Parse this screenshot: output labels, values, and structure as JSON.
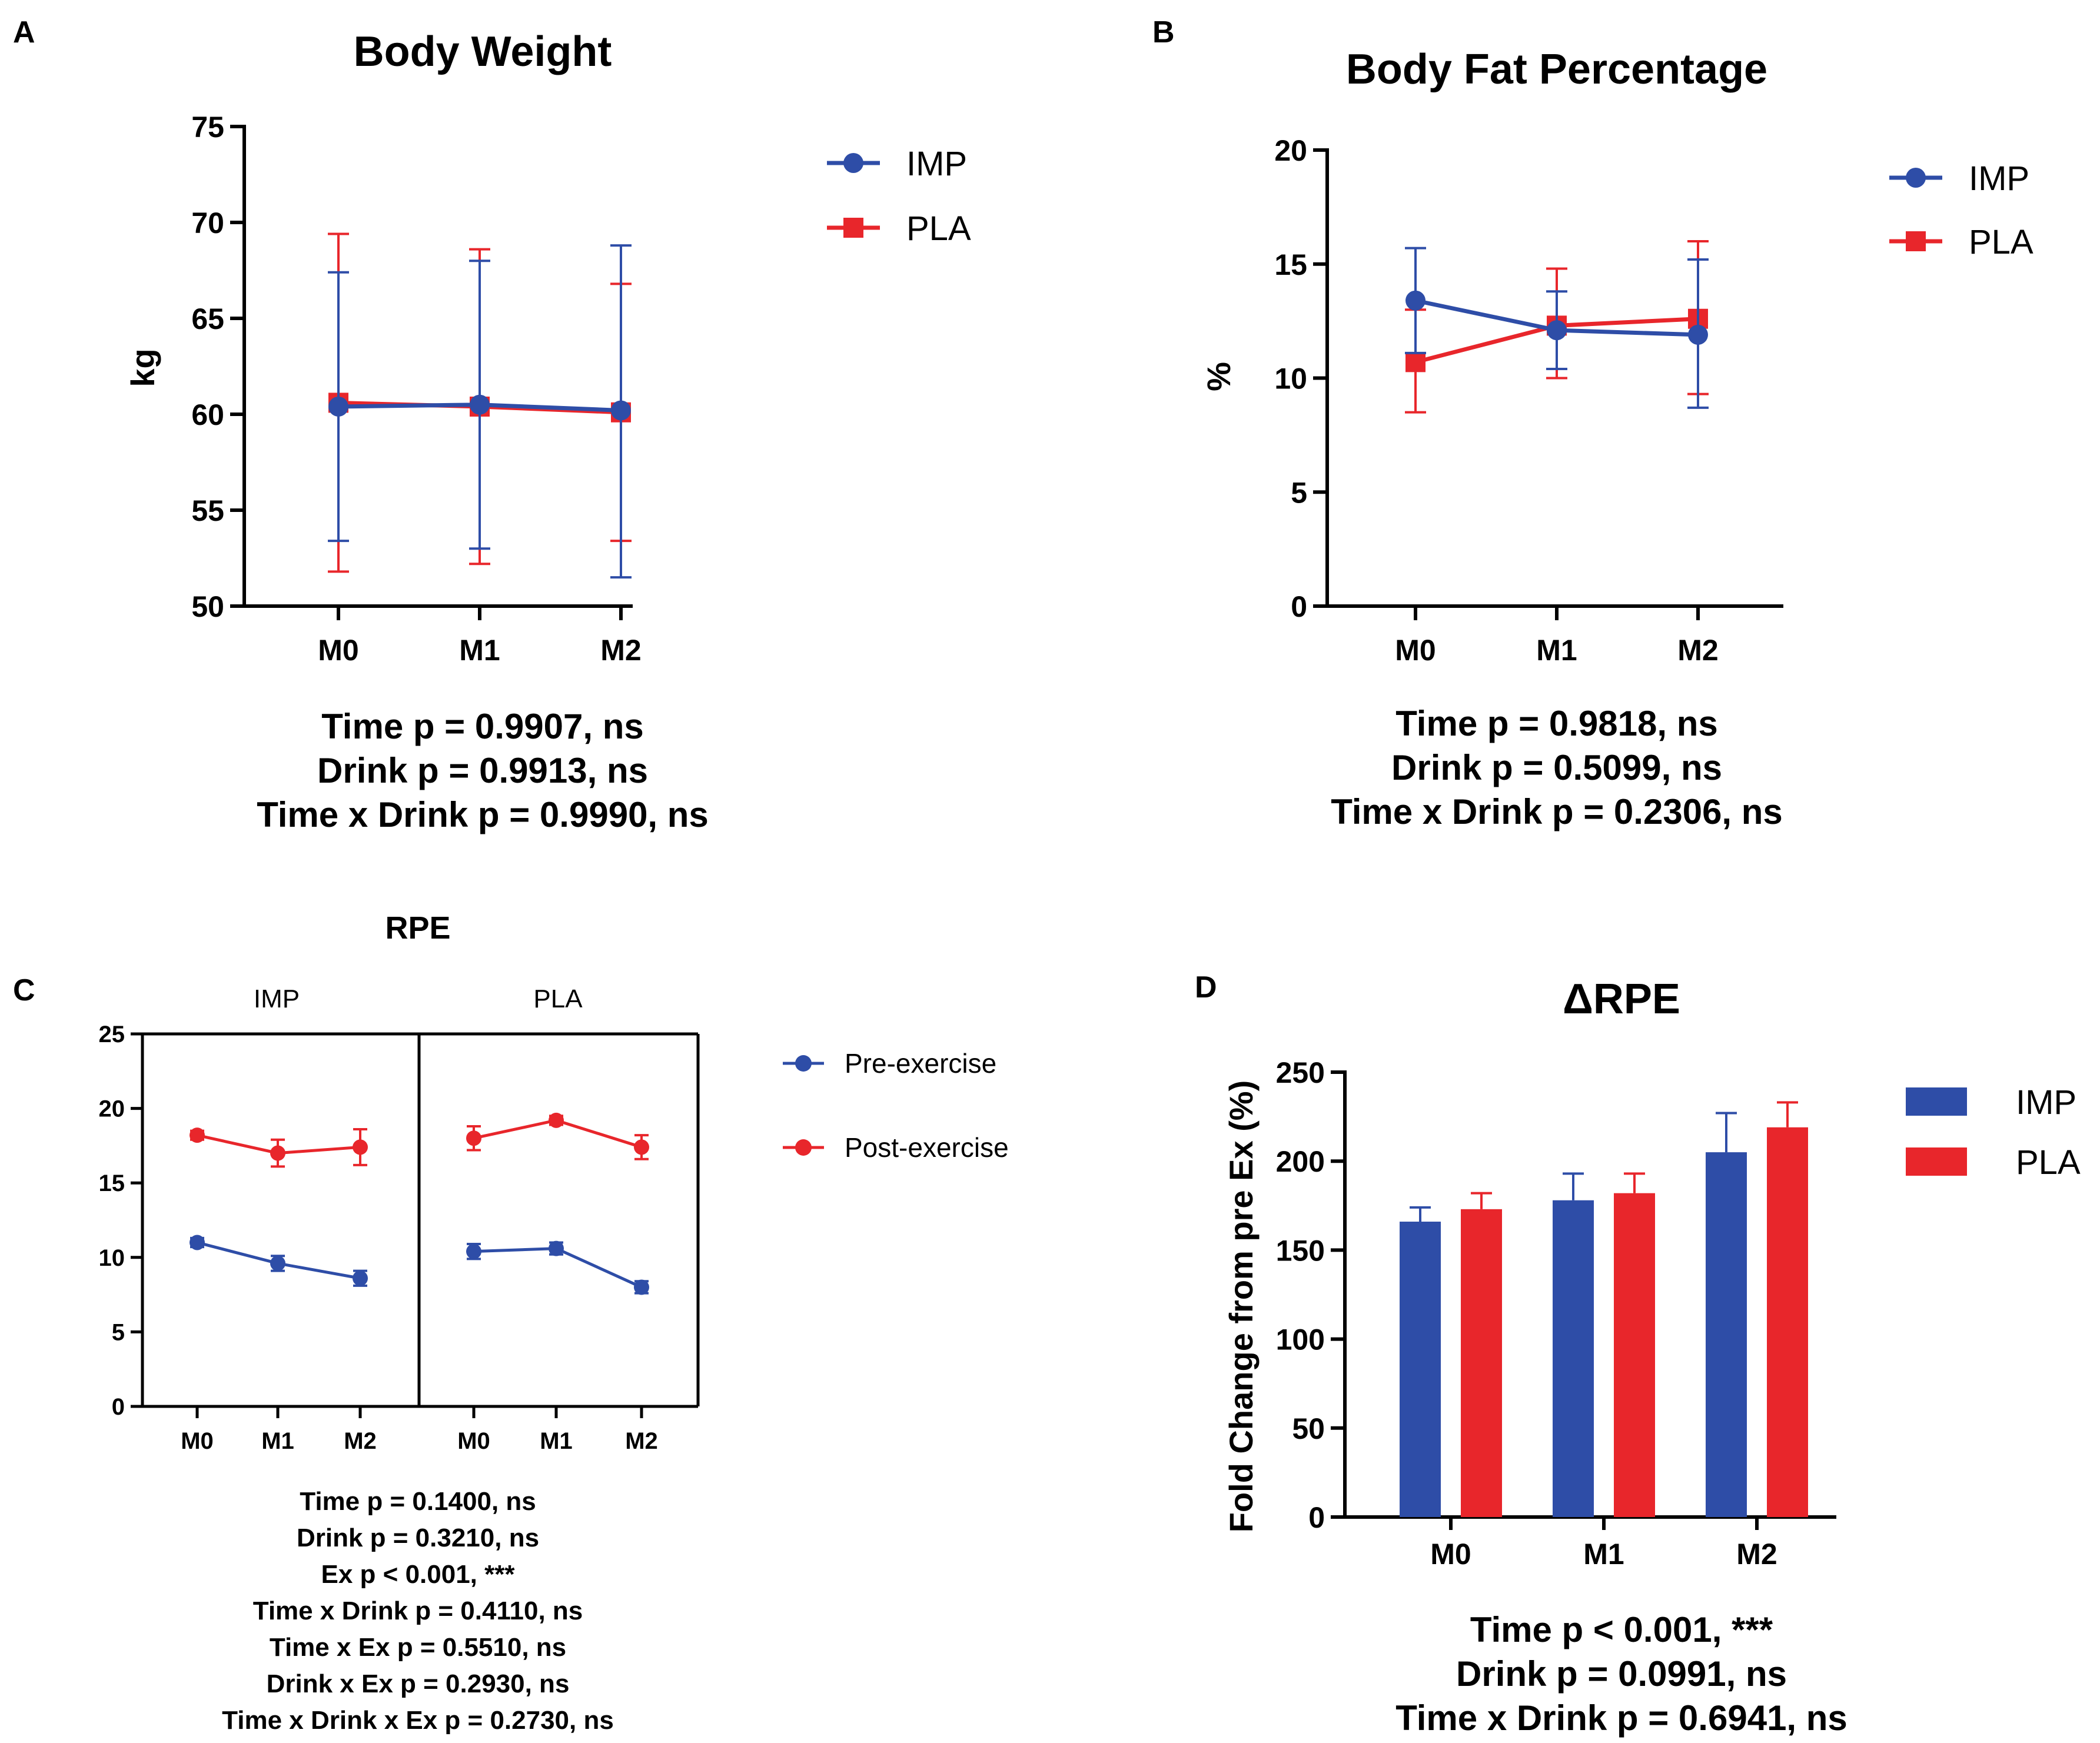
{
  "colors": {
    "imp": "#2E4DA7",
    "pla": "#E8262B",
    "axis": "#000000"
  },
  "chart_data": [
    {
      "panel": "A",
      "type": "line",
      "title": "Body Weight",
      "ylabel": "kg",
      "xlabel": "",
      "categories": [
        "M0",
        "M1",
        "M2"
      ],
      "ylim": [
        50,
        75
      ],
      "yticks": [
        "50",
        "55",
        "60",
        "65",
        "70",
        "75"
      ],
      "series": [
        {
          "name": "IMP",
          "values": [
            60.4,
            60.5,
            60.2
          ],
          "err_low": [
            53.4,
            53.0,
            51.5
          ],
          "err_high": [
            67.4,
            68.0,
            68.8
          ]
        },
        {
          "name": "PLA",
          "values": [
            60.6,
            60.4,
            60.1
          ],
          "err_low": [
            51.8,
            52.2,
            53.4
          ],
          "err_high": [
            69.4,
            68.6,
            66.8
          ]
        }
      ],
      "stats": [
        "Time p = 0.9907, ns",
        "Drink p = 0.9913, ns",
        "Time x Drink p = 0.9990, ns"
      ]
    },
    {
      "panel": "B",
      "type": "line",
      "title": "Body Fat Percentage",
      "ylabel": "%",
      "xlabel": "",
      "categories": [
        "M0",
        "M1",
        "M2"
      ],
      "ylim": [
        0,
        20
      ],
      "yticks": [
        "0",
        "5",
        "10",
        "15",
        "20"
      ],
      "series": [
        {
          "name": "IMP",
          "values": [
            13.4,
            12.1,
            11.9
          ],
          "err_low": [
            11.1,
            10.4,
            8.7
          ],
          "err_high": [
            15.7,
            13.8,
            15.2
          ]
        },
        {
          "name": "PLA",
          "values": [
            10.7,
            12.3,
            12.6
          ],
          "err_low": [
            8.5,
            10.0,
            9.3
          ],
          "err_high": [
            13.0,
            14.8,
            16.0
          ]
        }
      ],
      "stats": [
        "Time p = 0.9818, ns",
        "Drink p = 0.5099, ns",
        "Time x Drink p = 0.2306, ns"
      ]
    },
    {
      "panel": "C",
      "type": "line",
      "title": "RPE",
      "ylabel": "",
      "categories": [
        "M0",
        "M1",
        "M2"
      ],
      "ylim": [
        0,
        25
      ],
      "yticks": [
        "0",
        "5",
        "10",
        "15",
        "20",
        "25"
      ],
      "facets": [
        {
          "name": "IMP",
          "series": [
            {
              "name": "Pre-exercise",
              "values": [
                11.0,
                9.6,
                8.6
              ],
              "err": [
                0.3,
                0.5,
                0.5
              ]
            },
            {
              "name": "Post-exercise",
              "values": [
                18.2,
                17.0,
                17.4
              ],
              "err": [
                0.3,
                0.9,
                1.2
              ]
            }
          ]
        },
        {
          "name": "PLA",
          "series": [
            {
              "name": "Pre-exercise",
              "values": [
                10.4,
                10.6,
                8.0
              ],
              "err": [
                0.5,
                0.4,
                0.4
              ]
            },
            {
              "name": "Post-exercise",
              "values": [
                18.0,
                19.2,
                17.4
              ],
              "err": [
                0.8,
                0.3,
                0.8
              ]
            }
          ]
        }
      ],
      "legend": [
        "Pre-exercise",
        "Post-exercise"
      ],
      "stats": [
        "Time p = 0.1400, ns",
        "Drink p = 0.3210, ns",
        "Ex p < 0.001, ***",
        "Time x Drink p = 0.4110, ns",
        "Time x Ex  p = 0.5510, ns",
        "Drink x Ex p = 0.2930, ns",
        "Time x Drink x Ex p = 0.2730, ns"
      ]
    },
    {
      "panel": "D",
      "type": "bar",
      "title": "ΔRPE",
      "ylabel": "Fold Change from pre Ex (%)",
      "categories": [
        "M0",
        "M1",
        "M2"
      ],
      "ylim": [
        0,
        250
      ],
      "yticks": [
        "0",
        "50",
        "100",
        "150",
        "200",
        "250"
      ],
      "series": [
        {
          "name": "IMP",
          "values": [
            166,
            178,
            205
          ],
          "err": [
            8,
            15,
            22
          ]
        },
        {
          "name": "PLA",
          "values": [
            173,
            182,
            219
          ],
          "err": [
            9,
            11,
            14
          ]
        }
      ],
      "stats": [
        "Time p < 0.001, ***",
        "Drink p = 0.0991, ns",
        "Time x Drink p = 0.6941, ns"
      ]
    }
  ]
}
